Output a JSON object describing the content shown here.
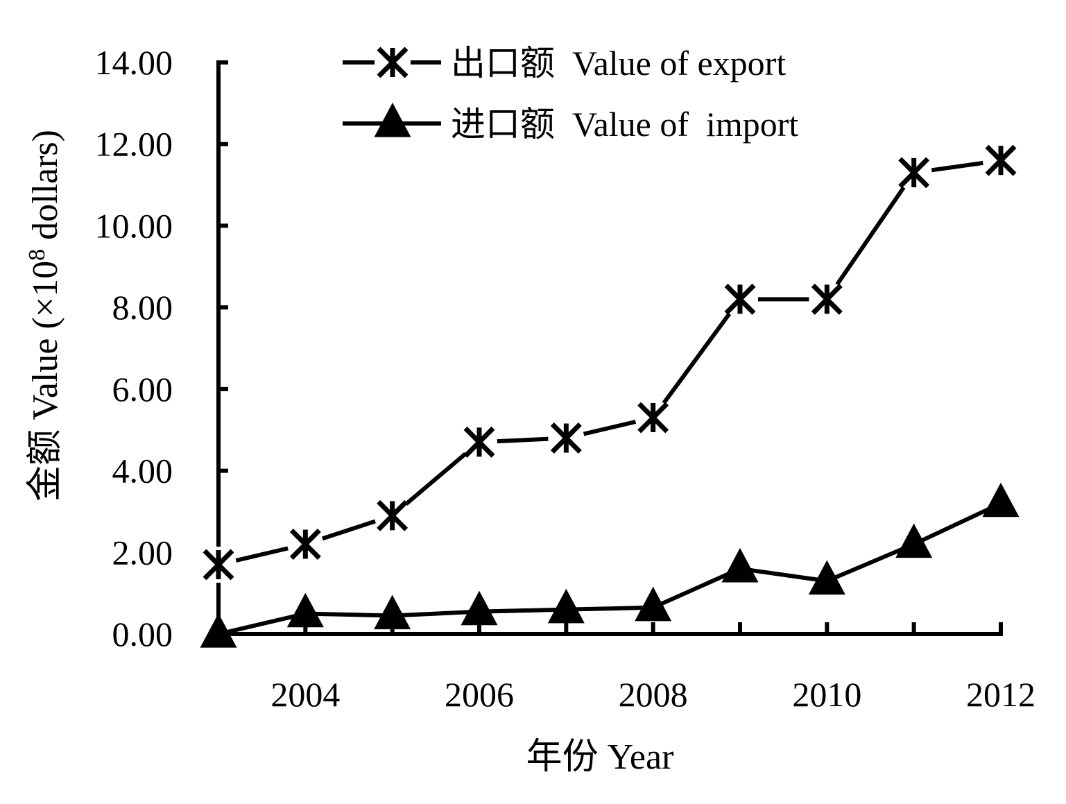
{
  "chart_data": {
    "type": "line",
    "x": [
      2003,
      2004,
      2005,
      2006,
      2007,
      2008,
      2009,
      2010,
      2011,
      2012
    ],
    "x_tick_labels": [
      "2004",
      "2006",
      "2008",
      "2010",
      "2012"
    ],
    "y_tick_labels": [
      "0.00",
      "2.00",
      "4.00",
      "6.00",
      "8.00",
      "10.00",
      "12.00",
      "14.00"
    ],
    "xlim": [
      2003,
      2012
    ],
    "ylim": [
      0,
      14
    ],
    "xlabel": "年份  Year",
    "ylabel_main": "金额  Value (×10",
    "ylabel_sup": "8",
    "ylabel_tail": " dollars)",
    "grid": false,
    "legend_position": "top-center",
    "series": [
      {
        "name": "出口额  Value of export",
        "marker": "asterisk",
        "values": [
          1.7,
          2.2,
          2.9,
          4.7,
          4.8,
          5.3,
          8.2,
          8.2,
          11.3,
          11.6
        ]
      },
      {
        "name": "进口额  Value of  import",
        "marker": "triangle",
        "values": [
          0.0,
          0.5,
          0.45,
          0.55,
          0.6,
          0.65,
          1.6,
          1.3,
          2.2,
          3.2
        ]
      }
    ],
    "colors": {
      "line": "#000000",
      "background": "#ffffff"
    }
  }
}
